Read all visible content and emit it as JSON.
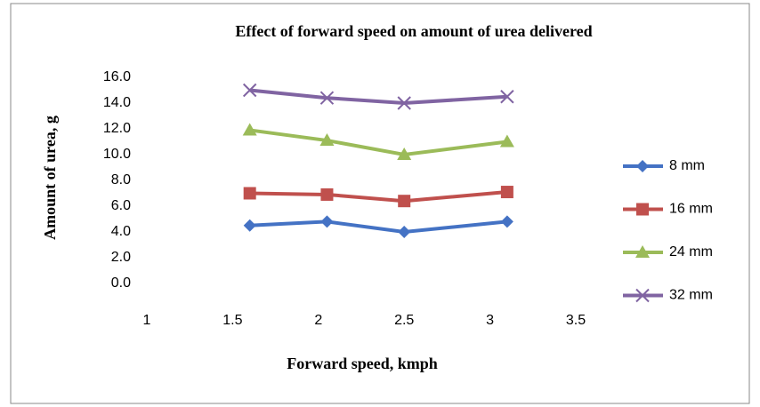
{
  "chart_data": {
    "type": "line",
    "title": "Effect of forward speed on amount of urea delivered",
    "x_label": "Forward speed, kmph",
    "y_label": "Amount of urea, g",
    "x": [
      1.6,
      2.05,
      2.5,
      3.1
    ],
    "series": [
      {
        "name": "8 mm",
        "color": "#4472c4",
        "marker": "diamond",
        "values": [
          4.5,
          4.8,
          4.0,
          4.8
        ]
      },
      {
        "name": "16 mm",
        "color": "#c0504d",
        "marker": "square",
        "values": [
          7.0,
          6.9,
          6.4,
          7.1
        ]
      },
      {
        "name": "24 mm",
        "color": "#9bbb59",
        "marker": "triangle",
        "values": [
          11.9,
          11.1,
          10.0,
          11.0
        ]
      },
      {
        "name": "32 mm",
        "color": "#8064a2",
        "marker": "x",
        "values": [
          15.0,
          14.4,
          14.0,
          14.5
        ]
      }
    ],
    "xlim": [
      1,
      3.5
    ],
    "xticks": [
      1,
      1.5,
      2,
      2.5,
      3,
      3.5
    ],
    "ylim": [
      0,
      16
    ],
    "yticks": [
      {
        "value": 0,
        "label": "0.0"
      },
      {
        "value": 2,
        "label": "2.0"
      },
      {
        "value": 4,
        "label": "4.0"
      },
      {
        "value": 6,
        "label": "6.0"
      },
      {
        "value": 8,
        "label": "8.0"
      },
      {
        "value": 10,
        "label": "10.0"
      },
      {
        "value": 12,
        "label": "12.0"
      },
      {
        "value": 14,
        "label": "14.0"
      },
      {
        "value": 16,
        "label": "16.0"
      }
    ],
    "grid": false,
    "legend": "right"
  }
}
